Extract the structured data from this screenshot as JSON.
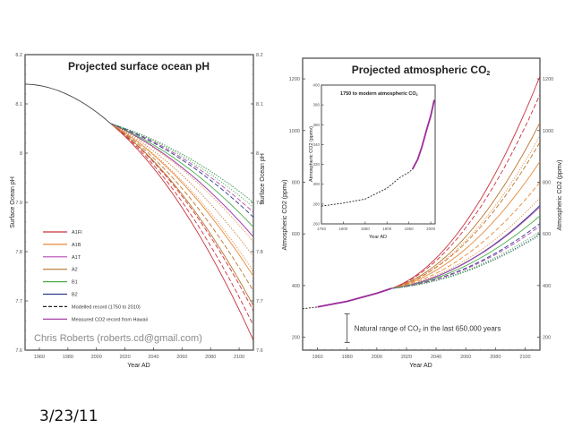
{
  "slide": {
    "date": "3/23/11"
  },
  "chart_data": [
    {
      "type": "line",
      "title": "Projected surface ocean pH",
      "xlabel": "Year AD",
      "ylabel": "Surface Ocean pH",
      "ylabel_right": "Surface Ocean pH",
      "xlim": [
        1950,
        2110
      ],
      "ylim": [
        7.6,
        8.2
      ],
      "xticks": [
        1960,
        1980,
        2000,
        2020,
        2040,
        2060,
        2080,
        2100
      ],
      "yticks": [
        7.6,
        7.7,
        7.8,
        7.9,
        8.0,
        8.1,
        8.2
      ],
      "ytick_labels": [
        "7.6",
        "7.7",
        "7.8",
        "7.9",
        "8",
        "8.1",
        "8.2"
      ],
      "credit": "Chris Roberts (roberts.cd@gmail.com)",
      "legend": [
        {
          "name": "A1FI",
          "color": "#c8323c",
          "style": "solid"
        },
        {
          "name": "A1B",
          "color": "#e8893a",
          "style": "solid"
        },
        {
          "name": "A1T",
          "color": "#b44bb4",
          "style": "solid"
        },
        {
          "name": "A2",
          "color": "#b8762e",
          "style": "solid"
        },
        {
          "name": "B1",
          "color": "#4cae4c",
          "style": "solid"
        },
        {
          "name": "B2",
          "color": "#2e3a8c",
          "style": "solid"
        },
        {
          "name": "Modelled record (1750 to 2010)",
          "color": "#222222",
          "style": "dashed"
        },
        {
          "name": "Measured CO2 record from Hawaii",
          "color": "#9b2c9b",
          "style": "solid"
        }
      ],
      "historical": {
        "x": [
          1950,
          1970,
          1990,
          2010
        ],
        "y": [
          8.14,
          8.13,
          8.1,
          8.06
        ]
      },
      "series": [
        {
          "name": "A1FI",
          "color": "#c8323c",
          "style": "solid",
          "end_2110": 7.62
        },
        {
          "name": "A1FI",
          "color": "#c8323c",
          "style": "dashed",
          "end_2110": 7.65
        },
        {
          "name": "A1FI",
          "color": "#c8323c",
          "style": "dashed",
          "end_2110": 7.68
        },
        {
          "name": "A2",
          "color": "#b8762e",
          "style": "solid",
          "end_2110": 7.69
        },
        {
          "name": "A2",
          "color": "#b8762e",
          "style": "dashed",
          "end_2110": 7.72
        },
        {
          "name": "A1B",
          "color": "#e8893a",
          "style": "solid",
          "end_2110": 7.75
        },
        {
          "name": "A1B",
          "color": "#e8893a",
          "style": "dotted",
          "end_2110": 7.76
        },
        {
          "name": "A2",
          "color": "#b8762e",
          "style": "dotted",
          "end_2110": 7.79
        },
        {
          "name": "A1B",
          "color": "#e8893a",
          "style": "dotted",
          "end_2110": 7.82
        },
        {
          "name": "B2",
          "color": "#2e3a8c",
          "style": "solid",
          "end_2110": 7.83
        },
        {
          "name": "A1T",
          "color": "#b44bb4",
          "style": "solid",
          "end_2110": 7.83
        },
        {
          "name": "B1",
          "color": "#4cae4c",
          "style": "solid",
          "end_2110": 7.85
        },
        {
          "name": "A1T",
          "color": "#b44bb4",
          "style": "dashed",
          "end_2110": 7.88
        },
        {
          "name": "B2",
          "color": "#2e3a8c",
          "style": "dashed",
          "end_2110": 7.87
        },
        {
          "name": "B1",
          "color": "#4cae4c",
          "style": "dotted",
          "end_2110": 7.89
        },
        {
          "name": "B2",
          "color": "#2e3a8c",
          "style": "dotted",
          "end_2110": 7.9
        },
        {
          "name": "B1",
          "color": "#4cae4c",
          "style": "dotted",
          "end_2110": 7.9
        }
      ]
    },
    {
      "type": "line",
      "title": "Projected atmospheric CO",
      "title_subscript": "2",
      "xlabel": "Year AD",
      "ylabel": "Atmospheric CO2 (ppmv)",
      "ylabel_right": "Atmospheric CO2 (ppmv)",
      "xlim": [
        1950,
        2110
      ],
      "ylim": [
        150,
        1280
      ],
      "xticks": [
        1960,
        1980,
        2000,
        2020,
        2040,
        2060,
        2080,
        2100
      ],
      "yticks": [
        200,
        400,
        600,
        800,
        1000,
        1200
      ],
      "annotation": {
        "text": "Natural range of CO",
        "subscript": "2",
        "text_after": " in the last 650,000 years",
        "x": 1980,
        "range": [
          180,
          290
        ]
      },
      "historical": {
        "x": [
          1950,
          1960,
          1980,
          2000,
          2010
        ],
        "y": [
          310,
          317,
          339,
          370,
          389
        ]
      },
      "series": [
        {
          "name": "A1FI",
          "color": "#c8323c",
          "style": "solid",
          "end_2110": 1210
        },
        {
          "name": "A1FI",
          "color": "#c8323c",
          "style": "dashed",
          "end_2110": 1140
        },
        {
          "name": "A2",
          "color": "#b8762e",
          "style": "solid",
          "end_2110": 1030
        },
        {
          "name": "A1B",
          "color": "#e8893a",
          "style": "dotted",
          "end_2110": 980
        },
        {
          "name": "A2",
          "color": "#b8762e",
          "style": "dashed",
          "end_2110": 955
        },
        {
          "name": "A1B",
          "color": "#e8893a",
          "style": "solid",
          "end_2110": 880
        },
        {
          "name": "A1B",
          "color": "#e8893a",
          "style": "dashed",
          "end_2110": 800
        },
        {
          "name": "A1B",
          "color": "#e8893a",
          "style": "dotted",
          "end_2110": 740
        },
        {
          "name": "B2",
          "color": "#2e3a8c",
          "style": "solid",
          "end_2110": 710
        },
        {
          "name": "A1T",
          "color": "#b44bb4",
          "style": "solid",
          "end_2110": 705
        },
        {
          "name": "B1",
          "color": "#4cae4c",
          "style": "solid",
          "end_2110": 670
        },
        {
          "name": "B2",
          "color": "#2e3a8c",
          "style": "dashed",
          "end_2110": 640
        },
        {
          "name": "A1T",
          "color": "#b44bb4",
          "style": "dashed",
          "end_2110": 630
        },
        {
          "name": "B1",
          "color": "#4cae4c",
          "style": "dotted",
          "end_2110": 610
        },
        {
          "name": "B2",
          "color": "#2e3a8c",
          "style": "dotted",
          "end_2110": 600
        },
        {
          "name": "B1",
          "color": "#4cae4c",
          "style": "dotted",
          "end_2110": 595
        }
      ],
      "inset": {
        "title": "1750 to modern atmospheric CO",
        "title_subscript": "2",
        "xlabel": "Year AD",
        "ylabel": "Atmospheric CO2 (ppmv)",
        "xlim": [
          1750,
          2010
        ],
        "ylim": [
          260,
          400
        ],
        "xticks": [
          1750,
          1800,
          1850,
          1900,
          1950,
          2000
        ],
        "yticks": [
          260,
          280,
          300,
          320,
          340,
          360,
          380,
          400
        ],
        "modelled": {
          "x": [
            1750,
            1800,
            1850,
            1900,
            1930,
            1950,
            1960
          ],
          "y": [
            278,
            281,
            285,
            296,
            307,
            312,
            316
          ]
        },
        "measured": {
          "x": [
            1958,
            1970,
            1980,
            1990,
            2000,
            2008
          ],
          "y": [
            315,
            325,
            338,
            354,
            369,
            385
          ]
        }
      }
    }
  ]
}
